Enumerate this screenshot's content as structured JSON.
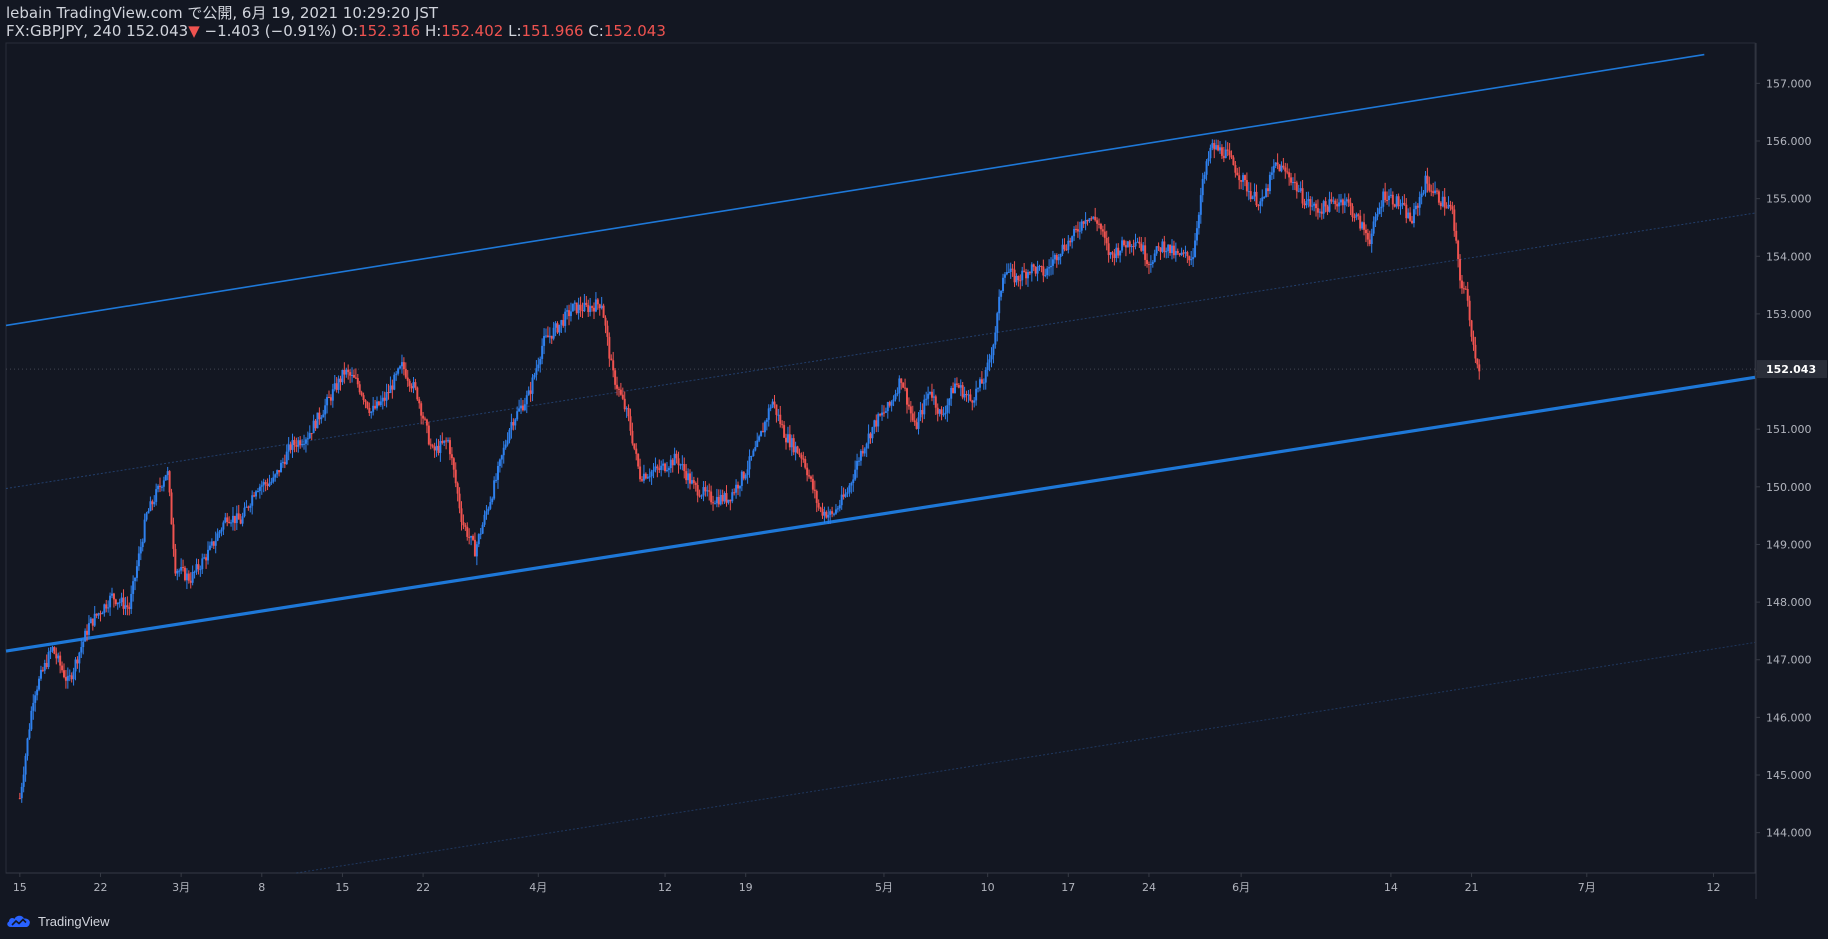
{
  "header": {
    "publish_line": "lebain TradingView.com で公開, 6月 19, 2021 10:29:20 JST",
    "symbol": "FX:GBPJPY, 240",
    "last_price": "152.043",
    "change_arrow": "▼",
    "change": "−1.403 (−0.91%)",
    "open_label": "O:",
    "open": "152.316",
    "high_label": "H:",
    "high": "152.402",
    "low_label": "L:",
    "low": "151.966",
    "close_label": "C:",
    "close": "152.043"
  },
  "footer": {
    "brand": "TradingView",
    "logo_icon": "tradingview-cloud-icon"
  },
  "colors": {
    "background": "#131722",
    "up": "#2962ff",
    "up_candle": "#2f80ed",
    "down": "#ef5350",
    "channel": "#1e78d8",
    "axis_text": "#b2b5be",
    "price_badge_bg": "#2a2e39"
  },
  "chart_data": {
    "type": "candlestick",
    "symbol": "FX:GBPJPY",
    "interval": "240",
    "y_range": [
      143.3,
      157.7
    ],
    "y_ticks": [
      144,
      145,
      146,
      147,
      148,
      149,
      150,
      151,
      152,
      153,
      154,
      155,
      156,
      157
    ],
    "y_tick_labels": [
      "144.000",
      "145.000",
      "146.000",
      "147.000",
      "148.000",
      "149.000",
      "150.000",
      "151.000",
      "152.000",
      "153.000",
      "154.000",
      "155.000",
      "156.000",
      "157.000"
    ],
    "current_price": 152.043,
    "current_price_label": "152.043",
    "x_ticks": [
      {
        "label": "15",
        "day": 0
      },
      {
        "label": "22",
        "day": 7
      },
      {
        "label": "3月",
        "day": 14
      },
      {
        "label": "8",
        "day": 21
      },
      {
        "label": "15",
        "day": 28
      },
      {
        "label": "22",
        "day": 35
      },
      {
        "label": "4月",
        "day": 45
      },
      {
        "label": "12",
        "day": 56
      },
      {
        "label": "19",
        "day": 63
      },
      {
        "label": "5月",
        "day": 75
      },
      {
        "label": "10",
        "day": 84
      },
      {
        "label": "17",
        "day": 91
      },
      {
        "label": "24",
        "day": 98
      },
      {
        "label": "6月",
        "day": 106
      },
      {
        "label": "14",
        "day": 119
      },
      {
        "label": "21",
        "day": 126
      },
      {
        "label": "7月",
        "day": 136
      },
      {
        "label": "12",
        "day": 147
      }
    ],
    "x_day_range": [
      -1.2,
      150.6
    ],
    "path_anchors": [
      [
        0,
        144.6
      ],
      [
        1.2,
        146.4
      ],
      [
        2.8,
        147.2
      ],
      [
        4.2,
        146.6
      ],
      [
        6,
        147.6
      ],
      [
        8,
        148.1
      ],
      [
        9.5,
        147.9
      ],
      [
        11,
        149.5
      ],
      [
        12.8,
        150.3
      ],
      [
        13.5,
        148.6
      ],
      [
        14.8,
        148.4
      ],
      [
        16.5,
        148.9
      ],
      [
        18,
        149.5
      ],
      [
        19.2,
        149.4
      ],
      [
        20.5,
        150.0
      ],
      [
        22,
        150.1
      ],
      [
        23.5,
        150.7
      ],
      [
        25,
        150.9
      ],
      [
        26.5,
        151.4
      ],
      [
        28.2,
        152.0
      ],
      [
        29.3,
        151.8
      ],
      [
        30.5,
        151.3
      ],
      [
        31.6,
        151.5
      ],
      [
        33.2,
        152.1
      ],
      [
        34.5,
        151.6
      ],
      [
        35.8,
        150.6
      ],
      [
        37.2,
        150.8
      ],
      [
        38.4,
        149.4
      ],
      [
        39.5,
        148.9
      ],
      [
        41.3,
        150.1
      ],
      [
        42.6,
        151.1
      ],
      [
        44.2,
        151.6
      ],
      [
        45.4,
        152.5
      ],
      [
        46.8,
        152.8
      ],
      [
        48.0,
        153.1
      ],
      [
        49.2,
        153.1
      ],
      [
        50.5,
        153.2
      ],
      [
        51.4,
        152.0
      ],
      [
        52.8,
        151.2
      ],
      [
        53.8,
        150.2
      ],
      [
        55.5,
        150.3
      ],
      [
        57.0,
        150.5
      ],
      [
        58.5,
        150.0
      ],
      [
        60.0,
        149.8
      ],
      [
        61.5,
        149.8
      ],
      [
        62.8,
        150.2
      ],
      [
        64.0,
        150.7
      ],
      [
        65.3,
        151.5
      ],
      [
        66.4,
        150.9
      ],
      [
        68.0,
        150.5
      ],
      [
        69.4,
        149.6
      ],
      [
        70.5,
        149.5
      ],
      [
        71.8,
        149.9
      ],
      [
        73.0,
        150.6
      ],
      [
        74.2,
        151.1
      ],
      [
        75.5,
        151.4
      ],
      [
        76.5,
        151.9
      ],
      [
        77.7,
        151.0
      ],
      [
        79.0,
        151.7
      ],
      [
        80.0,
        151.2
      ],
      [
        81.2,
        151.8
      ],
      [
        82.5,
        151.5
      ],
      [
        83.8,
        151.9
      ],
      [
        84.6,
        152.6
      ],
      [
        85.4,
        153.8
      ],
      [
        86.5,
        153.6
      ],
      [
        87.8,
        153.8
      ],
      [
        89.0,
        153.7
      ],
      [
        90.2,
        154.1
      ],
      [
        91.3,
        154.3
      ],
      [
        92.5,
        154.7
      ],
      [
        93.6,
        154.6
      ],
      [
        94.6,
        154.0
      ],
      [
        95.8,
        154.2
      ],
      [
        97.0,
        154.3
      ],
      [
        98.0,
        153.9
      ],
      [
        99.2,
        154.2
      ],
      [
        100.5,
        154.0
      ],
      [
        101.8,
        154.0
      ],
      [
        102.6,
        155.2
      ],
      [
        103.4,
        155.9
      ],
      [
        104.6,
        155.8
      ],
      [
        105.6,
        155.5
      ],
      [
        106.8,
        155.1
      ],
      [
        107.8,
        154.9
      ],
      [
        109.0,
        155.6
      ],
      [
        110.2,
        155.4
      ],
      [
        111.4,
        155.0
      ],
      [
        112.6,
        154.8
      ],
      [
        113.8,
        154.9
      ],
      [
        115.0,
        155.0
      ],
      [
        116.2,
        154.6
      ],
      [
        117.2,
        154.3
      ],
      [
        118.4,
        155.1
      ],
      [
        119.8,
        154.9
      ],
      [
        120.8,
        154.6
      ],
      [
        122.0,
        155.3
      ],
      [
        123.2,
        155.0
      ],
      [
        124.3,
        154.8
      ],
      [
        125.0,
        153.6
      ],
      [
        125.6,
        153.3
      ],
      [
        126.2,
        152.4
      ],
      [
        126.7,
        152.04
      ]
    ],
    "channel": {
      "upper": {
        "from": [
          -1.2,
          152.8
        ],
        "to": [
          146.2,
          157.5
        ]
      },
      "lower": {
        "from": [
          -1.2,
          147.15
        ],
        "to": [
          150.6,
          151.9
        ]
      },
      "mid": {
        "from": [
          -1.2,
          149.97
        ],
        "to": [
          150.6,
          154.75
        ]
      },
      "bottom": {
        "from": [
          24,
          143.3
        ],
        "to": [
          150.6,
          147.3
        ]
      }
    }
  }
}
